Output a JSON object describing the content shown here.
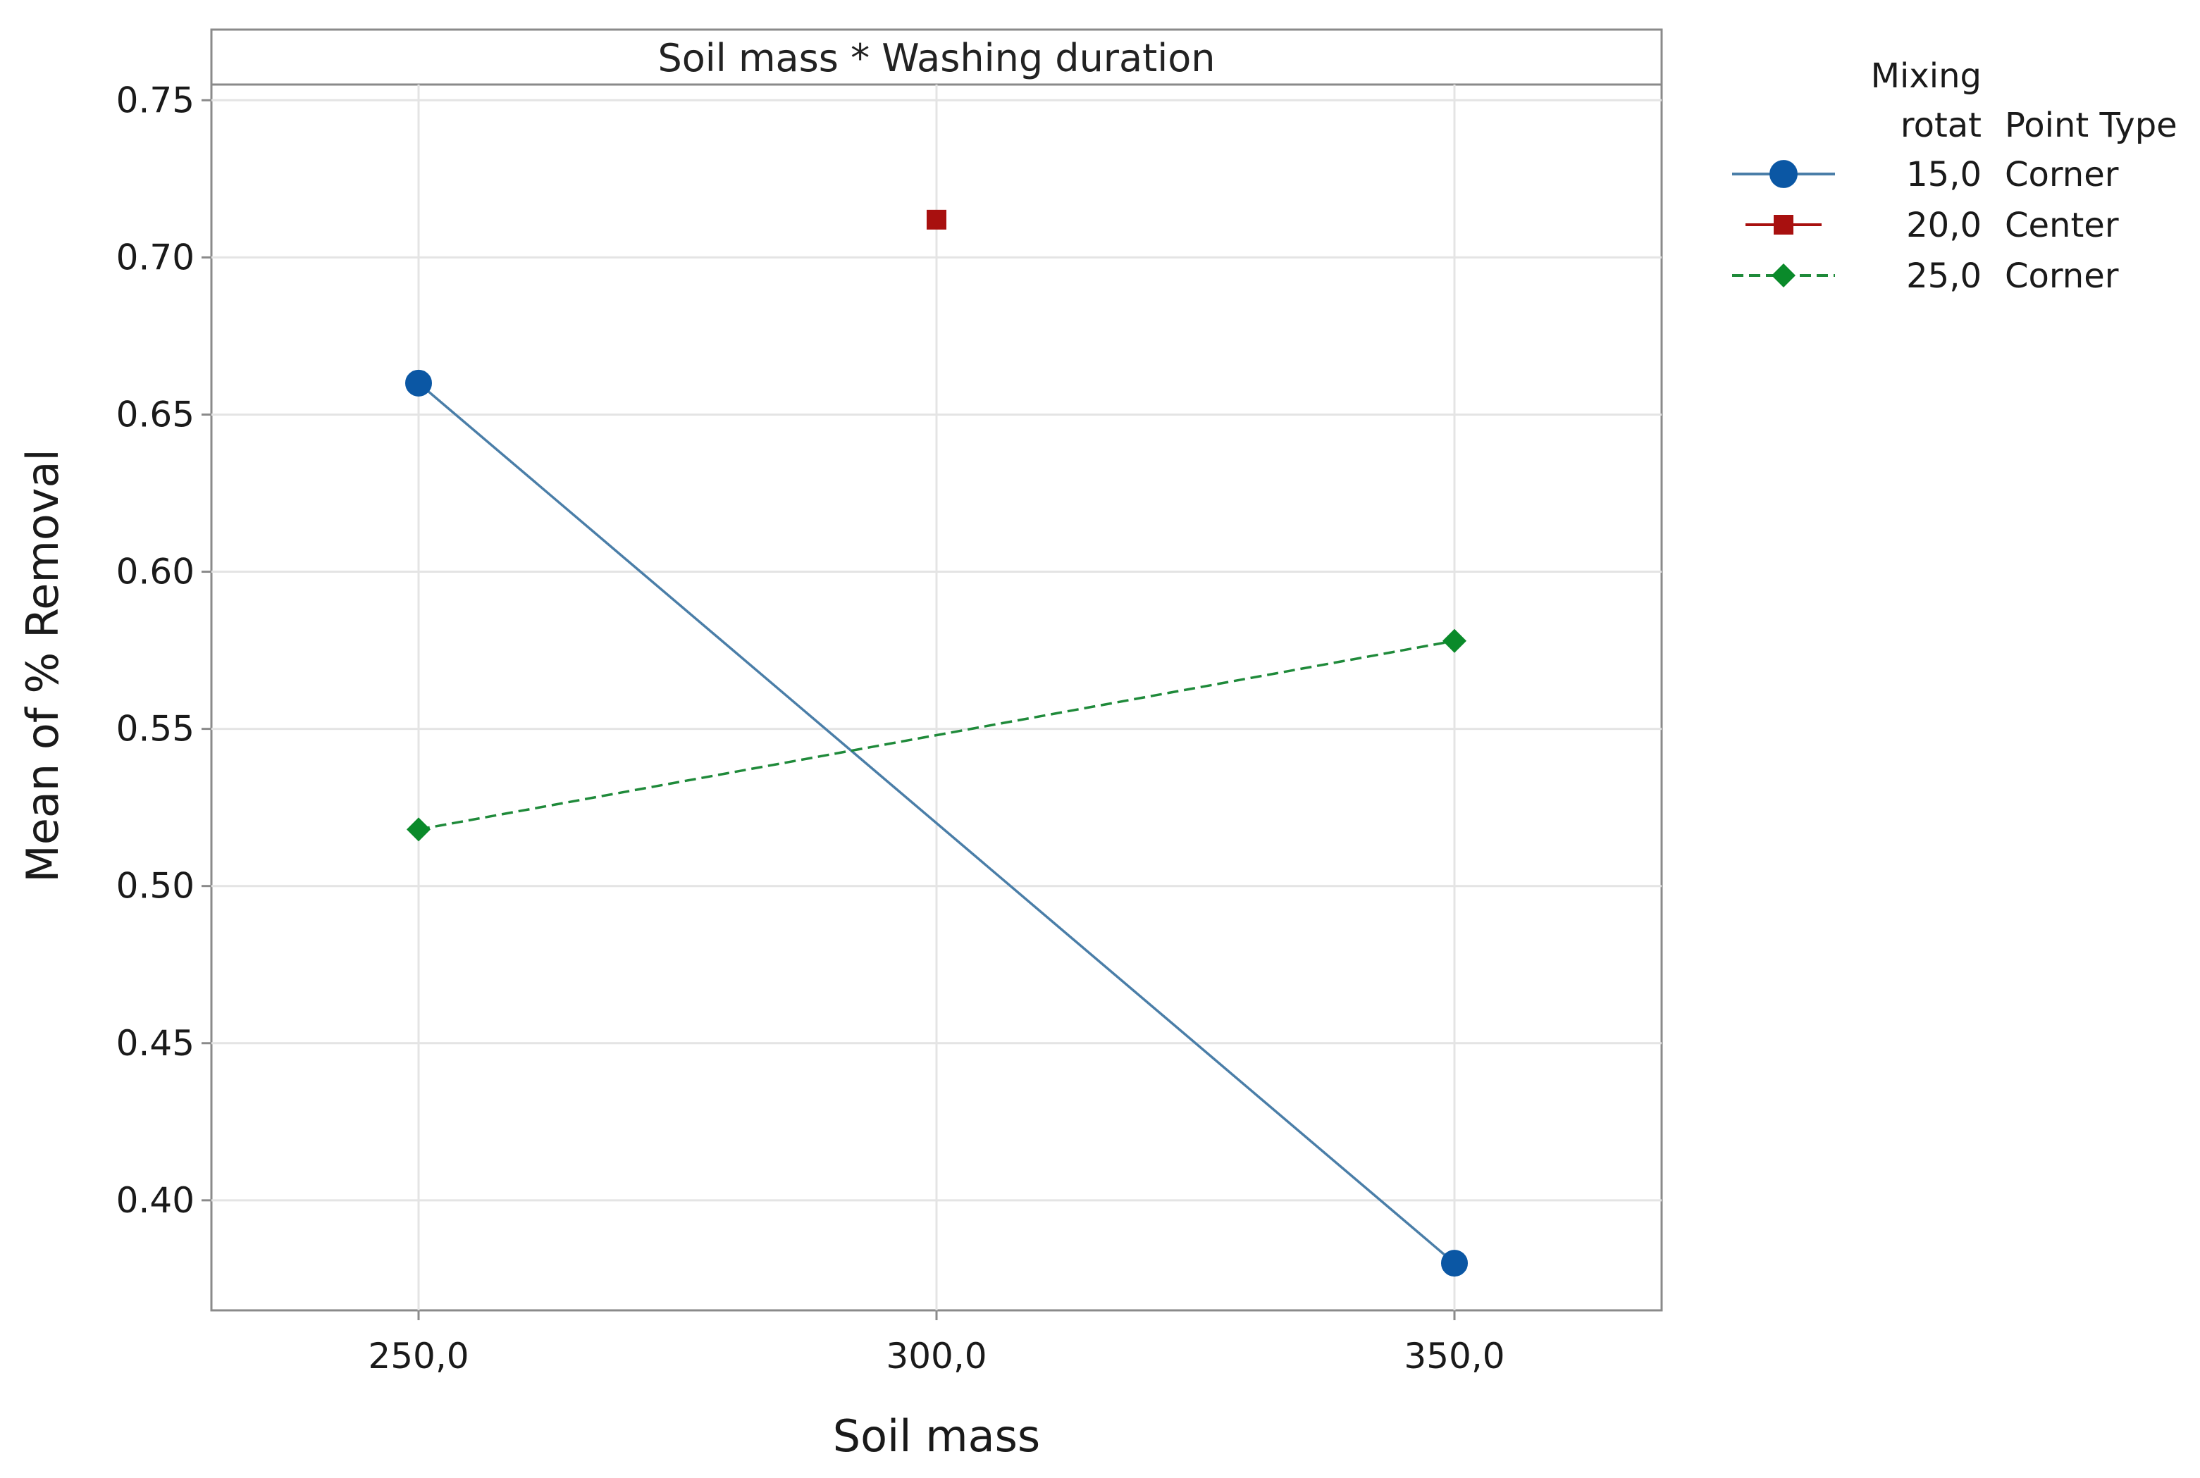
{
  "chart_data": {
    "type": "line",
    "title": "Soil mass * Washing duration",
    "xlabel": "Soil mass",
    "ylabel": "Mean of % Removal",
    "xlim": [
      230,
      370
    ],
    "ylim": [
      0.365,
      0.755
    ],
    "x_ticks": [
      250,
      300,
      350
    ],
    "x_tick_labels": [
      "250,0",
      "300,0",
      "350,0"
    ],
    "y_ticks": [
      0.4,
      0.45,
      0.5,
      0.55,
      0.6,
      0.65,
      0.7,
      0.75
    ],
    "y_tick_labels": [
      "0.40",
      "0.45",
      "0.50",
      "0.55",
      "0.60",
      "0.65",
      "0.70",
      "0.75"
    ],
    "grid": true,
    "legend": {
      "placement": "right",
      "header_line1": "Mixing",
      "header_col1": "rotat",
      "header_col2": "Point Type"
    },
    "series": [
      {
        "name": "15,0",
        "point_type": "Corner",
        "color": "#0b57a4",
        "line_color": "#4a7ea8",
        "marker": "circle",
        "dash": "solid",
        "x": [
          250,
          350
        ],
        "values": [
          0.66,
          0.38
        ]
      },
      {
        "name": "20,0",
        "point_type": "Center",
        "color": "#a8100f",
        "line_color": "#a8100f",
        "marker": "square",
        "dash": "solid",
        "x": [
          300
        ],
        "values": [
          0.712
        ]
      },
      {
        "name": "25,0",
        "point_type": "Corner",
        "color": "#0a8a2a",
        "line_color": "#1f8a3a",
        "marker": "diamond",
        "dash": "dashed",
        "x": [
          250,
          350
        ],
        "values": [
          0.518,
          0.578
        ]
      }
    ]
  }
}
